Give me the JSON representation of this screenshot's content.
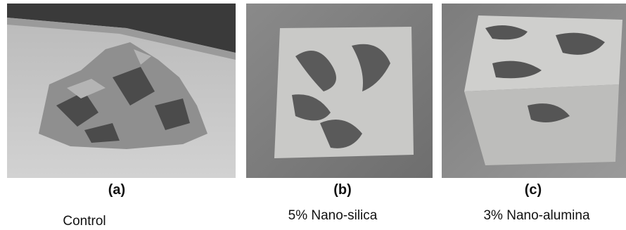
{
  "panels": [
    {
      "label": "(a)",
      "caption": "Control"
    },
    {
      "label": "(b)",
      "caption": "5% Nano-silica"
    },
    {
      "label": "(c)",
      "caption": "3% Nano-alumina"
    }
  ]
}
